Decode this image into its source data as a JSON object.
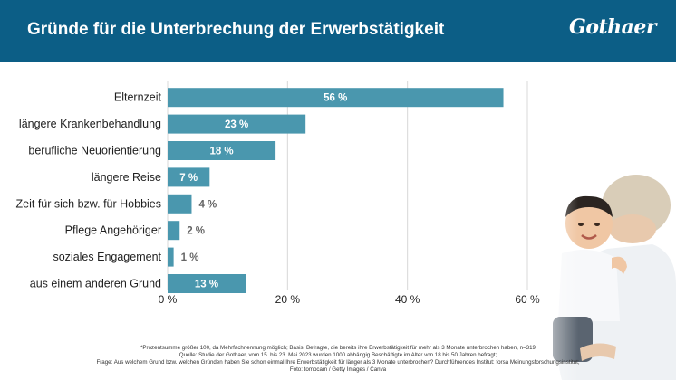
{
  "header": {
    "title": "Gründe für die Unterbrechung der Erwerbstätigkeit",
    "logo": "Gothaer",
    "color": "#0c5e86"
  },
  "chart_data": {
    "type": "bar",
    "orientation": "horizontal",
    "categories": [
      "Elternzeit",
      "längere Krankenbehandlung",
      "berufliche Neuorientierung",
      "längere Reise",
      "Zeit für sich bzw. für Hobbies",
      "Pflege Angehöriger",
      "soziales Engagement",
      "aus einem anderen Grund"
    ],
    "values": [
      56,
      23,
      18,
      7,
      4,
      2,
      1,
      13
    ],
    "value_labels": [
      "56 %",
      "23 %",
      "18 %",
      "7 %",
      "4 %",
      "2 %",
      "1 %",
      "13 %"
    ],
    "xlim": [
      0,
      60
    ],
    "ticks": [
      0,
      20,
      40,
      60
    ],
    "tick_labels": [
      "0 %",
      "20 %",
      "40 %",
      "60 %"
    ],
    "bar_color": "#4a97ae",
    "grid": true
  },
  "footnote": {
    "line1": "*Prozentsumme größer 100, da Mehrfachnennung möglich; Basis: Befragte, die bereits ihre Erwerbstätigkeit für mehr als 3 Monate unterbrochen haben, n=319",
    "line2": "Quelle: Studie der Gothaer, vom 15. bis 23. Mai 2023 wurden 1000 abhängig Beschäftigte im Alter von 18 bis 50 Jahren befragt;",
    "line3": "Frage: Aus welchem Grund bzw. welchen Gründen haben Sie schon einmal Ihre Erwerbstätigkeit für länger als 3 Monate unterbrochen? Durchführendes Institut: forsa Meinungsforschungsinstitut;",
    "line4": "Foto: tomocam / Getty Images / Canva"
  }
}
